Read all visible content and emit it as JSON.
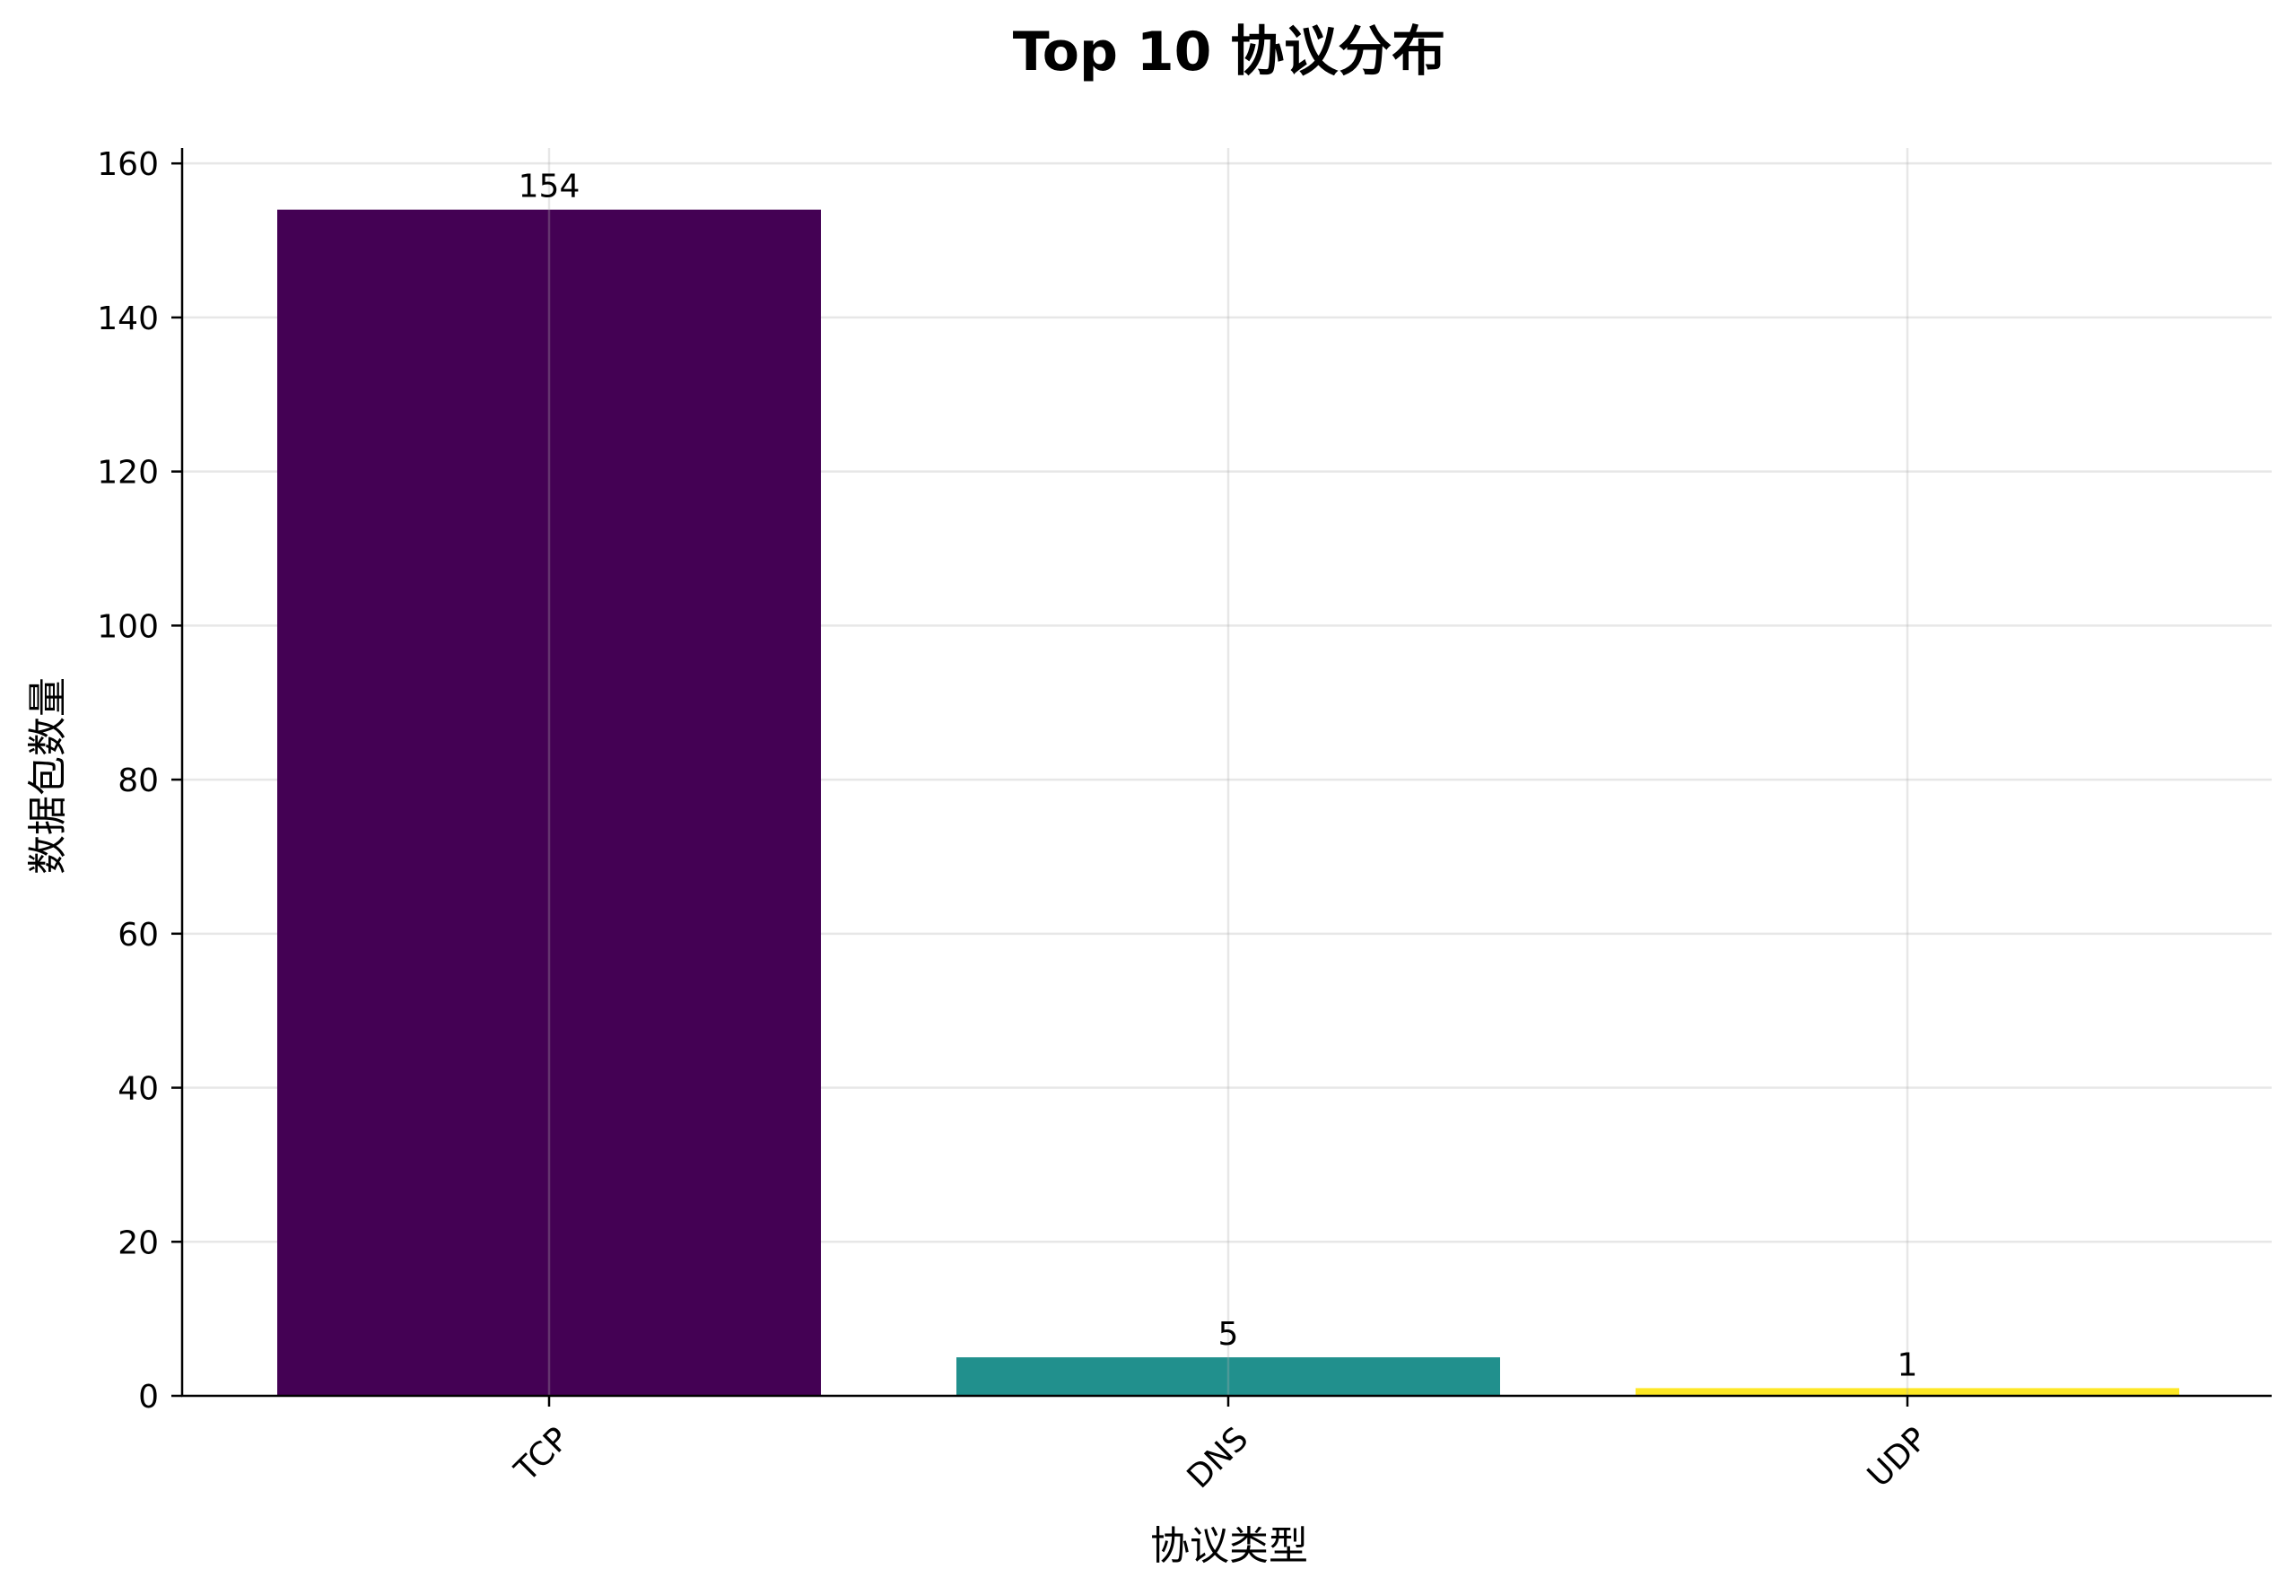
{
  "chart_data": {
    "type": "bar",
    "title": "Top 10 协议分布",
    "xlabel": "协议类型",
    "ylabel": "数据包数量",
    "categories": [
      "TCP",
      "DNS",
      "UDP"
    ],
    "values": [
      154,
      5,
      1
    ],
    "colors": [
      "#440154",
      "#21908d",
      "#fde725"
    ],
    "ylim": [
      0,
      162
    ],
    "yticks": [
      0,
      20,
      40,
      60,
      80,
      100,
      120,
      140,
      160
    ],
    "grid": true,
    "legend": "none"
  }
}
